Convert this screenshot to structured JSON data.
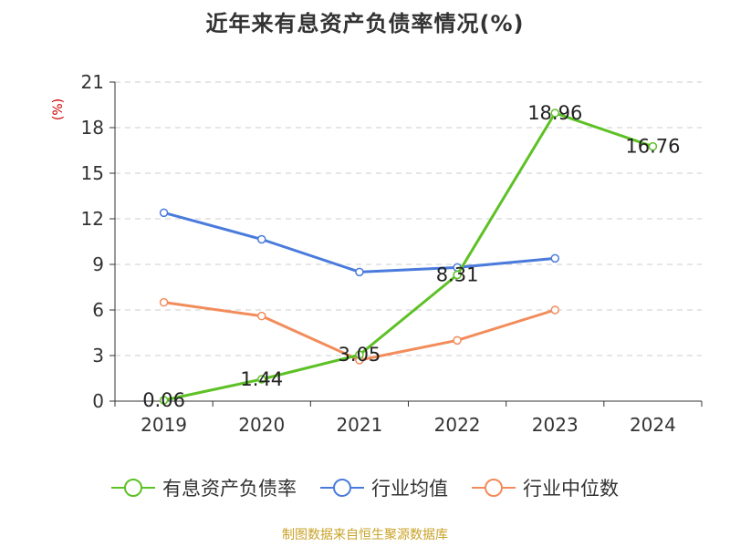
{
  "chart_data": {
    "type": "line",
    "title": "近年来有息资产负债率情况(%)",
    "ylabel": "(%)",
    "categories": [
      "2019",
      "2020",
      "2021",
      "2022",
      "2023",
      "2024"
    ],
    "ylim": [
      0,
      21
    ],
    "yticks": [
      0,
      3,
      6,
      9,
      12,
      15,
      18,
      21
    ],
    "grid": true,
    "legend_position": "bottom",
    "series": [
      {
        "name": "有息资产负债率",
        "color": "#5dc126",
        "values": [
          0.06,
          1.44,
          3.05,
          8.31,
          18.96,
          16.76
        ],
        "labels": [
          "0.06",
          "1.44",
          "3.05",
          "8.31",
          "18.96",
          "16.76"
        ]
      },
      {
        "name": "行业均值",
        "color": "#4a7bdc",
        "values": [
          12.4,
          10.65,
          8.5,
          8.8,
          9.4,
          null
        ]
      },
      {
        "name": "行业中位数",
        "color": "#f28c5b",
        "values": [
          6.5,
          5.6,
          2.7,
          4.0,
          6.0,
          null
        ]
      }
    ]
  },
  "source": "制图数据来自恒生聚源数据库"
}
